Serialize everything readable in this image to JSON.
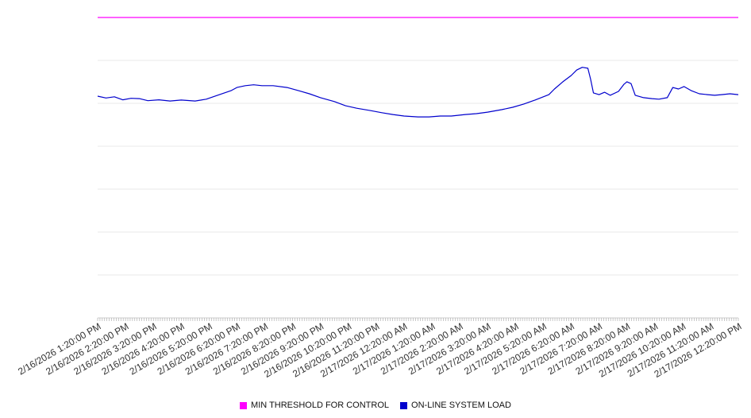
{
  "chart_data": {
    "type": "line",
    "title": "",
    "x_labels": [
      "2/16/2026 1:20:00 PM",
      "2/16/2026 2:20:00 PM",
      "2/16/2026 3:20:00 PM",
      "2/16/2026 4:20:00 PM",
      "2/16/2026 5:20:00 PM",
      "2/16/2026 6:20:00 PM",
      "2/16/2026 7:20:00 PM",
      "2/16/2026 8:20:00 PM",
      "2/16/2026 9:20:00 PM",
      "2/16/2026 10:20:00 PM",
      "2/16/2026 11:20:00 PM",
      "2/17/2026 12:20:00 AM",
      "2/17/2026 1:20:00 AM",
      "2/17/2026 2:20:00 AM",
      "2/17/2026 3:20:00 AM",
      "2/17/2026 4:20:00 AM",
      "2/17/2026 5:20:00 AM",
      "2/17/2026 6:20:00 AM",
      "2/17/2026 7:20:00 AM",
      "2/17/2026 8:20:00 AM",
      "2/17/2026 9:20:00 AM",
      "2/17/2026 10:20:00 AM",
      "2/17/2026 11:20:00 AM",
      "2/17/2026 12:20:00 PM"
    ],
    "y_axis": {
      "tick_labels_visible": false,
      "implied_range": [
        0,
        100
      ]
    },
    "x_axis": {
      "minor_ticks": "dense",
      "label_rotation_deg": -30
    },
    "grid": {
      "horizontal": true,
      "vertical": false,
      "line_color": "#e8e8e8"
    },
    "legend": {
      "position": "bottom-center"
    },
    "series": [
      {
        "name": "MIN THRESHOLD FOR CONTROL",
        "style": "horizontal-threshold",
        "color": "#ff00ff",
        "value": 100
      },
      {
        "name": "ON-LINE SYSTEM LOAD",
        "style": "line",
        "color": "#0000cd",
        "x_unit": "hours_since_first_tick",
        "points": [
          [
            0,
            73.8
          ],
          [
            0.3,
            73.2
          ],
          [
            0.6,
            73.6
          ],
          [
            0.9,
            72.6
          ],
          [
            1.2,
            73.1
          ],
          [
            1.5,
            73.0
          ],
          [
            1.8,
            72.3
          ],
          [
            2.2,
            72.6
          ],
          [
            2.6,
            72.2
          ],
          [
            3.0,
            72.5
          ],
          [
            3.5,
            72.2
          ],
          [
            3.9,
            72.8
          ],
          [
            4.3,
            74.1
          ],
          [
            4.8,
            75.7
          ],
          [
            5.0,
            76.7
          ],
          [
            5.3,
            77.3
          ],
          [
            5.6,
            77.6
          ],
          [
            5.9,
            77.3
          ],
          [
            6.3,
            77.3
          ],
          [
            6.8,
            76.7
          ],
          [
            7.2,
            75.7
          ],
          [
            7.6,
            74.6
          ],
          [
            8.0,
            73.3
          ],
          [
            8.5,
            72.0
          ],
          [
            8.9,
            70.6
          ],
          [
            9.3,
            69.8
          ],
          [
            9.8,
            69.0
          ],
          [
            10.2,
            68.3
          ],
          [
            10.6,
            67.7
          ],
          [
            11.0,
            67.2
          ],
          [
            11.5,
            66.9
          ],
          [
            11.9,
            66.9
          ],
          [
            12.3,
            67.2
          ],
          [
            12.7,
            67.2
          ],
          [
            13.2,
            67.7
          ],
          [
            13.6,
            68.0
          ],
          [
            14.0,
            68.5
          ],
          [
            14.5,
            69.3
          ],
          [
            14.9,
            70.1
          ],
          [
            15.3,
            71.2
          ],
          [
            15.7,
            72.5
          ],
          [
            16.2,
            74.3
          ],
          [
            16.4,
            76.2
          ],
          [
            16.7,
            78.6
          ],
          [
            17.0,
            80.7
          ],
          [
            17.2,
            82.5
          ],
          [
            17.4,
            83.4
          ],
          [
            17.6,
            83.1
          ],
          [
            17.7,
            79.4
          ],
          [
            17.8,
            74.9
          ],
          [
            18.0,
            74.3
          ],
          [
            18.2,
            75.1
          ],
          [
            18.4,
            74.1
          ],
          [
            18.7,
            75.4
          ],
          [
            18.9,
            77.8
          ],
          [
            19.0,
            78.6
          ],
          [
            19.15,
            78.0
          ],
          [
            19.3,
            74.1
          ],
          [
            19.6,
            73.3
          ],
          [
            19.9,
            73.0
          ],
          [
            20.15,
            72.8
          ],
          [
            20.45,
            73.3
          ],
          [
            20.65,
            76.7
          ],
          [
            20.85,
            76.2
          ],
          [
            21.05,
            77.0
          ],
          [
            21.3,
            75.7
          ],
          [
            21.6,
            74.6
          ],
          [
            21.9,
            74.3
          ],
          [
            22.15,
            74.1
          ],
          [
            22.4,
            74.3
          ],
          [
            22.7,
            74.6
          ],
          [
            23,
            74.3
          ]
        ]
      }
    ]
  }
}
